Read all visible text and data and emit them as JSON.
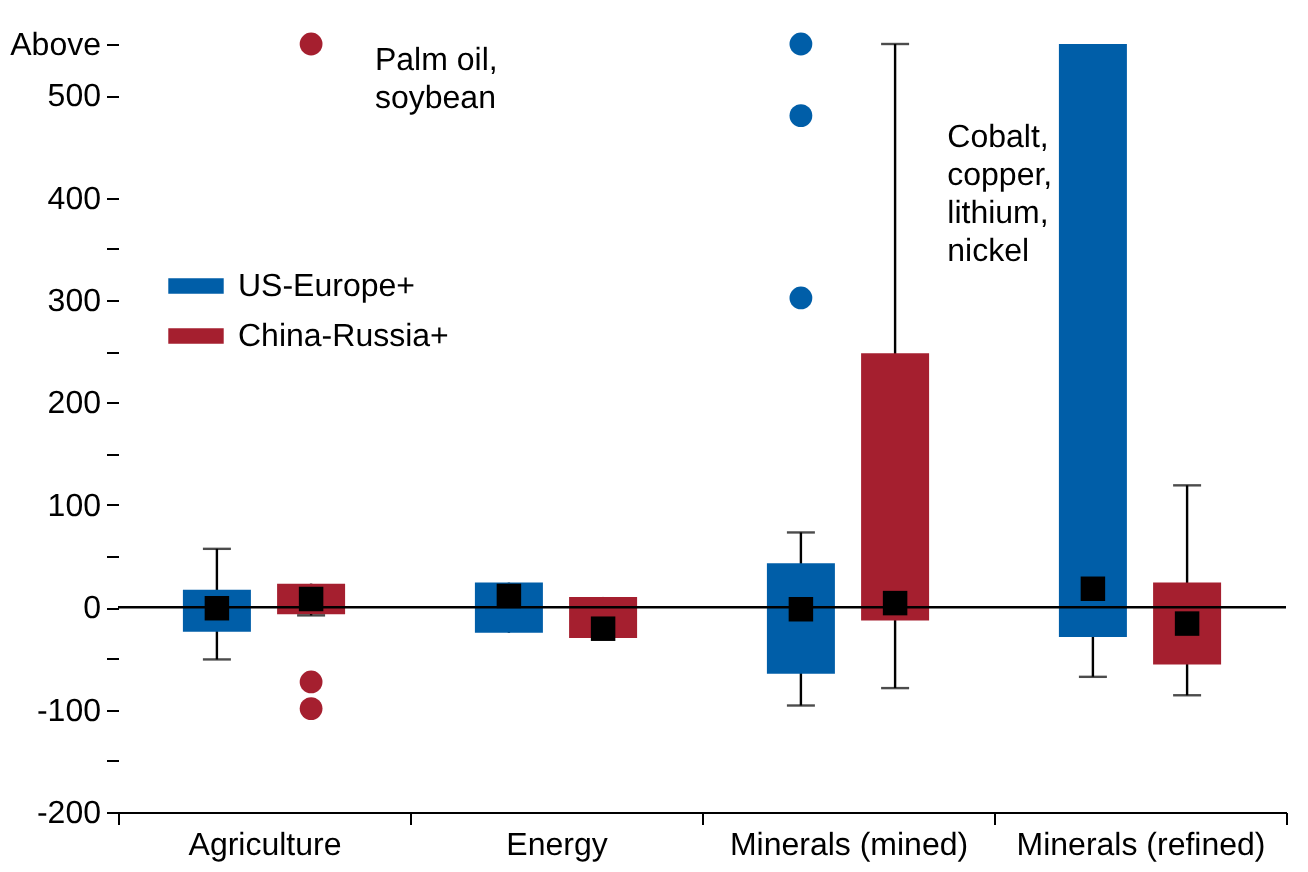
{
  "chart_data": {
    "type": "box",
    "categories": [
      "Agriculture",
      "Energy",
      "Minerals (mined)",
      "Minerals (refined)"
    ],
    "series": [
      {
        "name": "US-Europe+",
        "color": "#005ea8",
        "boxes": [
          {
            "low": -51,
            "q1": -24,
            "median": -1,
            "q3": 17,
            "high": 57
          },
          {
            "low": -25,
            "q1": -25,
            "median": 11,
            "q3": 24,
            "high": 24
          },
          {
            "low": -96,
            "q1": -65,
            "median": -2,
            "q3": 43,
            "high": 73,
            "outliers": [
              302,
              480,
              550
            ]
          },
          {
            "low": -68,
            "q1": -29,
            "median": 18,
            "q3": 550,
            "high": 550
          }
        ]
      },
      {
        "name": "China-Russia+",
        "color": "#a51f2f",
        "boxes": [
          {
            "low": -8,
            "q1": -7,
            "median": 8,
            "q3": 23,
            "high": 23,
            "outliers": [
              -99,
              -73,
              550
            ]
          },
          {
            "low": -30,
            "q1": -30,
            "median": -21,
            "q3": 10,
            "high": 10
          },
          {
            "low": -79,
            "q1": -13,
            "median": 4,
            "q3": 248,
            "high": 550
          },
          {
            "low": -86,
            "q1": -56,
            "median": -16,
            "q3": 24,
            "high": 119
          }
        ]
      }
    ],
    "ylim": [
      -200,
      550
    ],
    "yticks": [
      -200,
      {
        "value": -150,
        "label": null
      },
      -100,
      {
        "value": -50,
        "label": null
      },
      0,
      {
        "value": 50,
        "label": null
      },
      100,
      {
        "value": 150,
        "label": null
      },
      200,
      {
        "value": 250,
        "label": null
      },
      300,
      {
        "value": 350,
        "label": null
      },
      400,
      500,
      {
        "value": 550,
        "label": "Above"
      }
    ],
    "ref_lines": [
      {
        "axis": "y",
        "value": 0
      }
    ],
    "annotations": [
      "Palm oil,\nsoybean",
      "Cobalt,\ncopper,\nlithium,\nnickel"
    ],
    "legend": "top left",
    "grid": false
  }
}
